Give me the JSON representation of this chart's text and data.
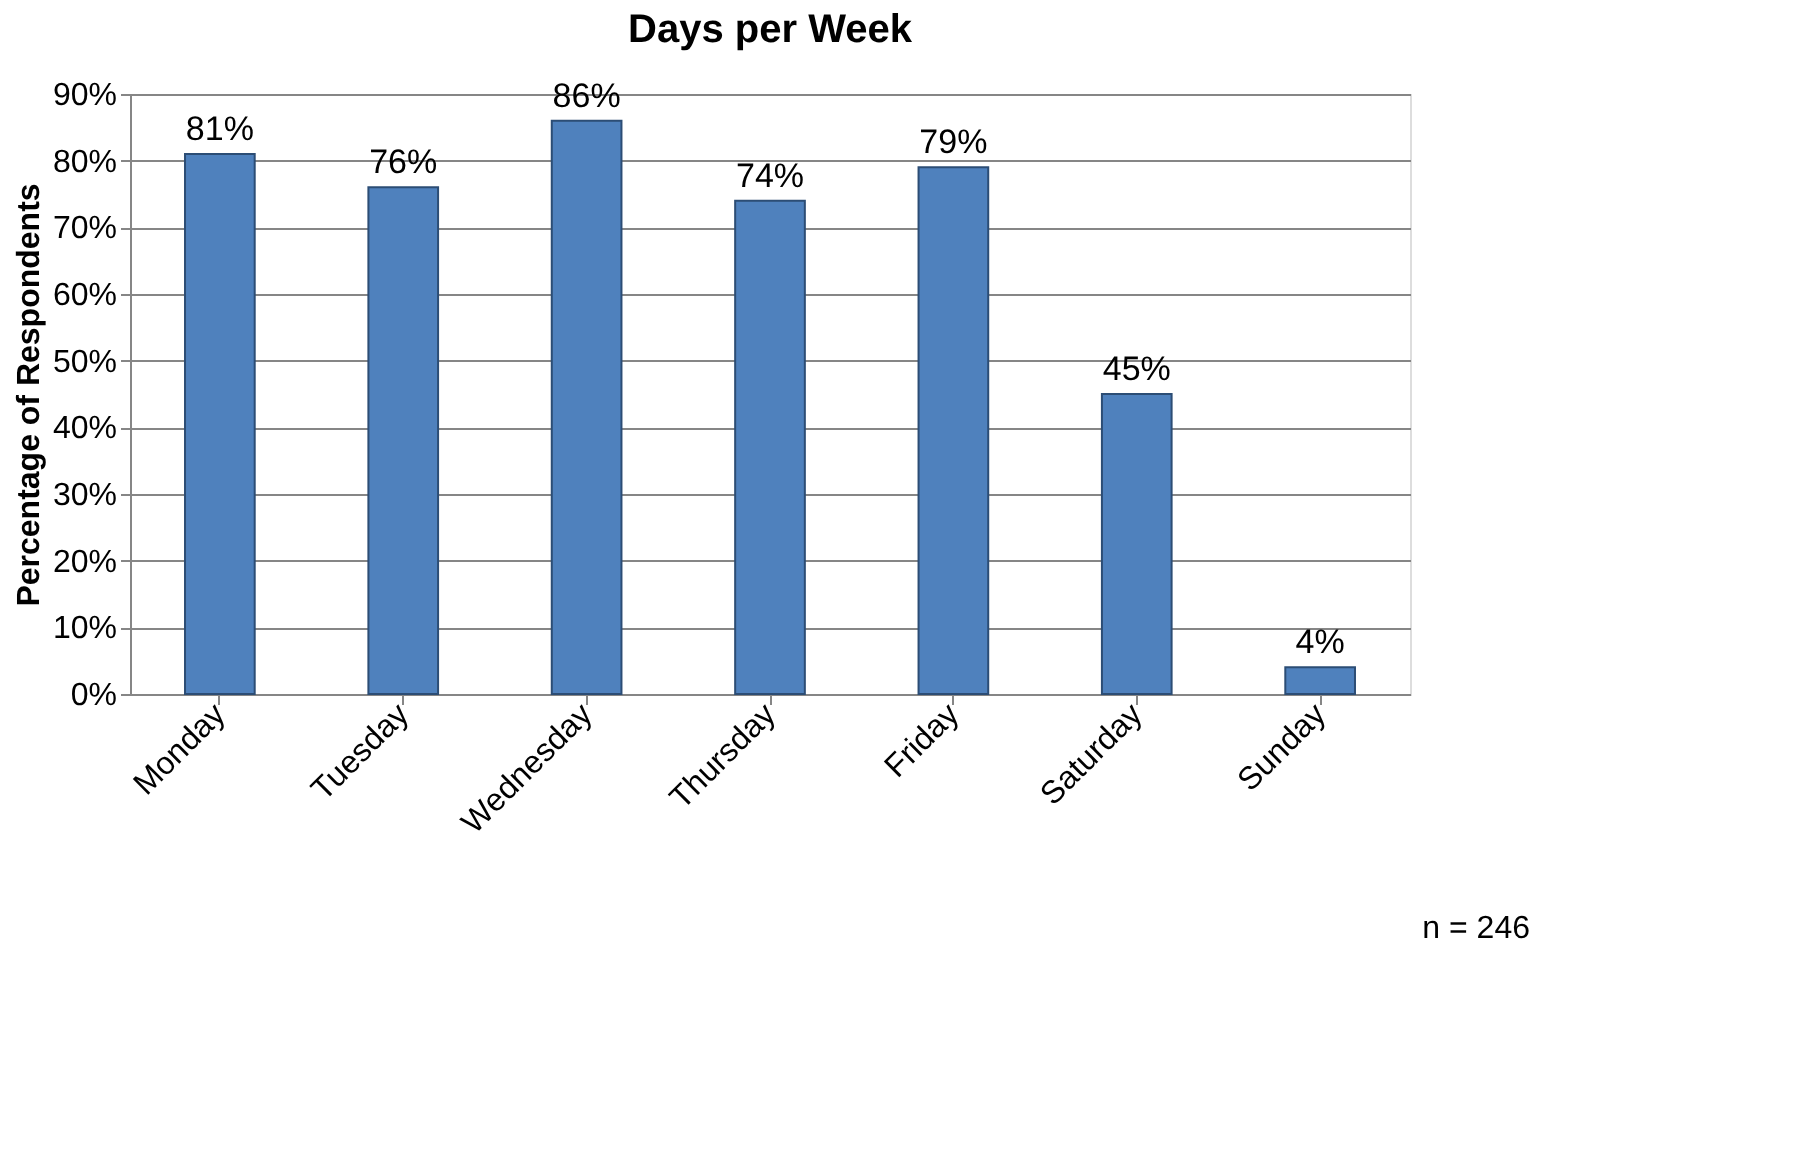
{
  "chart_data": {
    "type": "bar",
    "title": "Days per Week",
    "ylabel": "Percentage of Respondents",
    "categories": [
      "Monday",
      "Tuesday",
      "Wednesday",
      "Thursday",
      "Friday",
      "Saturday",
      "Sunday"
    ],
    "values": [
      81,
      76,
      86,
      74,
      79,
      45,
      4
    ],
    "value_labels": [
      "81%",
      "76%",
      "86%",
      "74%",
      "79%",
      "45%",
      "4%"
    ],
    "color": "#4f81bd",
    "ylim": [
      0,
      90
    ],
    "yticks": [
      {
        "value": 0,
        "label": "0%"
      },
      {
        "value": 10,
        "label": "10%"
      },
      {
        "value": 20,
        "label": "20%"
      },
      {
        "value": 30,
        "label": "30%"
      },
      {
        "value": 40,
        "label": "40%"
      },
      {
        "value": 50,
        "label": "50%"
      },
      {
        "value": 60,
        "label": "60%"
      },
      {
        "value": 70,
        "label": "70%"
      },
      {
        "value": 80,
        "label": "80%"
      },
      {
        "value": 90,
        "label": "90%"
      }
    ],
    "grid": "y",
    "annotations": [
      "n = 246"
    ]
  }
}
